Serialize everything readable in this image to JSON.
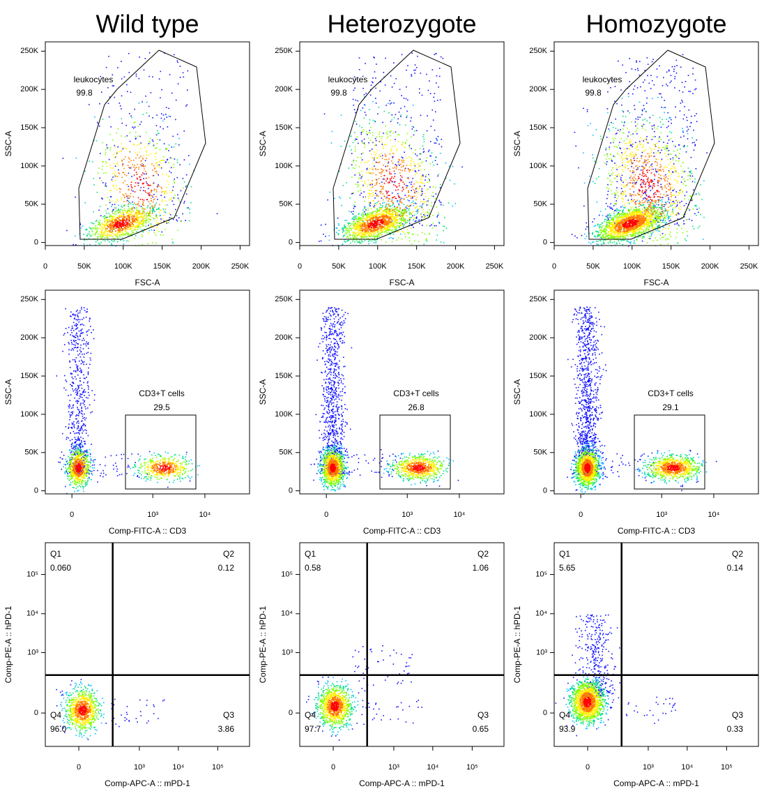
{
  "chart_data": [
    {
      "type": "scatter",
      "title": "Wild type",
      "x_label": "FSC-A",
      "y_label": "SSC-A",
      "xscale": "linear",
      "yscale": "linear",
      "xlim": [
        0,
        262144
      ],
      "ylim": [
        -4000,
        262144
      ],
      "xticks": [
        0,
        {
          "value": 50000,
          "label": "50K"
        },
        {
          "value": 100000,
          "label": "100K"
        },
        {
          "value": 150000,
          "label": "150K"
        },
        {
          "value": 200000,
          "label": "200K"
        },
        {
          "value": 250000,
          "label": "250K"
        }
      ],
      "yticks": [
        0,
        {
          "value": 50000,
          "label": "50K"
        },
        {
          "value": 100000,
          "label": "100K"
        },
        {
          "value": 150000,
          "label": "150K"
        },
        {
          "value": 200000,
          "label": "200K"
        },
        {
          "value": 250000,
          "label": "250K"
        }
      ],
      "gate_type": "polygon",
      "gates": [
        {
          "name": "leukocytes",
          "value": 99.8
        }
      ]
    },
    {
      "type": "scatter",
      "title": "Heterozygote",
      "x_label": "FSC-A",
      "y_label": "SSC-A",
      "xscale": "linear",
      "yscale": "linear",
      "xlim": [
        0,
        262144
      ],
      "ylim": [
        -4000,
        262144
      ],
      "xticks": [
        0,
        {
          "value": 50000,
          "label": "50K"
        },
        {
          "value": 100000,
          "label": "100K"
        },
        {
          "value": 150000,
          "label": "150K"
        },
        {
          "value": 200000,
          "label": "200K"
        },
        {
          "value": 250000,
          "label": "250K"
        }
      ],
      "yticks": [
        0,
        {
          "value": 50000,
          "label": "50K"
        },
        {
          "value": 100000,
          "label": "100K"
        },
        {
          "value": 150000,
          "label": "150K"
        },
        {
          "value": 200000,
          "label": "200K"
        },
        {
          "value": 250000,
          "label": "250K"
        }
      ],
      "gate_type": "polygon",
      "gates": [
        {
          "name": "leukocytes",
          "value": 99.8
        }
      ]
    },
    {
      "type": "scatter",
      "title": "Homozygote",
      "x_label": "FSC-A",
      "y_label": "SSC-A",
      "xscale": "linear",
      "yscale": "linear",
      "xlim": [
        0,
        262144
      ],
      "ylim": [
        -4000,
        262144
      ],
      "xticks": [
        0,
        {
          "value": 50000,
          "label": "50K"
        },
        {
          "value": 100000,
          "label": "100K"
        },
        {
          "value": 150000,
          "label": "150K"
        },
        {
          "value": 200000,
          "label": "200K"
        },
        {
          "value": 250000,
          "label": "250K"
        }
      ],
      "yticks": [
        0,
        {
          "value": 50000,
          "label": "50K"
        },
        {
          "value": 100000,
          "label": "100K"
        },
        {
          "value": 150000,
          "label": "150K"
        },
        {
          "value": 200000,
          "label": "200K"
        },
        {
          "value": 250000,
          "label": "250K"
        }
      ],
      "gate_type": "polygon",
      "gates": [
        {
          "name": "leukocytes",
          "value": 99.8
        }
      ]
    },
    {
      "type": "scatter",
      "x_label": "Comp-FITC-A :: CD3",
      "y_label": "SSC-A",
      "xscale": "biexponential",
      "yscale": "linear",
      "xlim": [
        -66,
        70600
      ],
      "ylim": [
        -4000,
        262144
      ],
      "xticks": [
        0,
        {
          "value": 1000,
          "label": "10³"
        },
        {
          "value": 10000,
          "label": "10⁴"
        }
      ],
      "yticks": [
        0,
        {
          "value": 50000,
          "label": "50K"
        },
        {
          "value": 100000,
          "label": "100K"
        },
        {
          "value": 150000,
          "label": "150K"
        },
        {
          "value": 200000,
          "label": "200K"
        },
        {
          "value": 250000,
          "label": "250K"
        }
      ],
      "gate_type": "rectangle",
      "gates": [
        {
          "name": "CD3+T cells",
          "value": 29.5
        }
      ]
    },
    {
      "type": "scatter",
      "x_label": "Comp-FITC-A :: CD3",
      "y_label": "SSC-A",
      "xscale": "biexponential",
      "yscale": "linear",
      "xlim": [
        -66,
        70600
      ],
      "ylim": [
        -4000,
        262144
      ],
      "xticks": [
        0,
        {
          "value": 1000,
          "label": "10³"
        },
        {
          "value": 10000,
          "label": "10⁴"
        }
      ],
      "yticks": [
        0,
        {
          "value": 50000,
          "label": "50K"
        },
        {
          "value": 100000,
          "label": "100K"
        },
        {
          "value": 150000,
          "label": "150K"
        },
        {
          "value": 200000,
          "label": "200K"
        },
        {
          "value": 250000,
          "label": "250K"
        }
      ],
      "gate_type": "rectangle",
      "gates": [
        {
          "name": "CD3+T cells",
          "value": 26.8
        }
      ]
    },
    {
      "type": "scatter",
      "x_label": "Comp-FITC-A :: CD3",
      "y_label": "SSC-A",
      "xscale": "biexponential",
      "yscale": "linear",
      "xlim": [
        -66,
        70600
      ],
      "ylim": [
        -4000,
        262144
      ],
      "xticks": [
        0,
        {
          "value": 1000,
          "label": "10³"
        },
        {
          "value": 10000,
          "label": "10⁴"
        }
      ],
      "yticks": [
        0,
        {
          "value": 50000,
          "label": "50K"
        },
        {
          "value": 100000,
          "label": "100K"
        },
        {
          "value": 150000,
          "label": "150K"
        },
        {
          "value": 200000,
          "label": "200K"
        },
        {
          "value": 250000,
          "label": "250K"
        }
      ],
      "gate_type": "rectangle",
      "gates": [
        {
          "name": "CD3+T cells",
          "value": 29.1
        }
      ]
    },
    {
      "type": "scatter",
      "x_label": "Comp-APC-A :: mPD-1",
      "y_label": "Comp-PE-A :: hPD-1",
      "xscale": "biexponential",
      "yscale": "biexponential",
      "xlim": [
        -182,
        641000
      ],
      "ylim": [
        -182,
        641000
      ],
      "xticks": [
        0,
        {
          "value": 1000,
          "label": "10³"
        },
        {
          "value": 10000,
          "label": "10⁴"
        },
        {
          "value": 100000,
          "label": "10⁵"
        }
      ],
      "yticks": [
        0,
        {
          "value": 1000,
          "label": "10³"
        },
        {
          "value": 10000,
          "label": "10⁴"
        },
        {
          "value": 100000,
          "label": "10⁵"
        }
      ],
      "gate_type": "quadrant",
      "gates": [
        {
          "name": "Q1",
          "value": 0.06,
          "label": "0.060"
        },
        {
          "name": "Q2",
          "value": 0.12
        },
        {
          "name": "Q3",
          "value": 3.86
        },
        {
          "name": "Q4",
          "value": 96,
          "label": "96.0"
        }
      ]
    },
    {
      "type": "scatter",
      "x_label": "Comp-APC-A :: mPD-1",
      "y_label": "Comp-PE-A :: hPD-1",
      "xscale": "biexponential",
      "yscale": "biexponential",
      "xlim": [
        -182,
        641000
      ],
      "ylim": [
        -182,
        641000
      ],
      "xticks": [
        0,
        {
          "value": 1000,
          "label": "10³"
        },
        {
          "value": 10000,
          "label": "10⁴"
        },
        {
          "value": 100000,
          "label": "10⁵"
        }
      ],
      "yticks": [
        0,
        {
          "value": 1000,
          "label": "10³"
        },
        {
          "value": 10000,
          "label": "10⁴"
        },
        {
          "value": 100000,
          "label": "10⁵"
        }
      ],
      "gate_type": "quadrant",
      "gates": [
        {
          "name": "Q1",
          "value": 0.58
        },
        {
          "name": "Q2",
          "value": 1.06
        },
        {
          "name": "Q3",
          "value": 0.65
        },
        {
          "name": "Q4",
          "value": 97.7
        }
      ]
    },
    {
      "type": "scatter",
      "x_label": "Comp-APC-A :: mPD-1",
      "y_label": "Comp-PE-A :: hPD-1",
      "xscale": "biexponential",
      "yscale": "biexponential",
      "xlim": [
        -182,
        641000
      ],
      "ylim": [
        -182,
        641000
      ],
      "xticks": [
        0,
        {
          "value": 1000,
          "label": "10³"
        },
        {
          "value": 10000,
          "label": "10⁴"
        },
        {
          "value": 100000,
          "label": "10⁵"
        }
      ],
      "yticks": [
        0,
        {
          "value": 1000,
          "label": "10³"
        },
        {
          "value": 10000,
          "label": "10⁴"
        },
        {
          "value": 100000,
          "label": "10⁵"
        }
      ],
      "gate_type": "quadrant",
      "gates": [
        {
          "name": "Q1",
          "value": 5.65
        },
        {
          "name": "Q2",
          "value": 0.14
        },
        {
          "name": "Q3",
          "value": 0.33
        },
        {
          "name": "Q4",
          "value": 93.9
        }
      ]
    }
  ]
}
